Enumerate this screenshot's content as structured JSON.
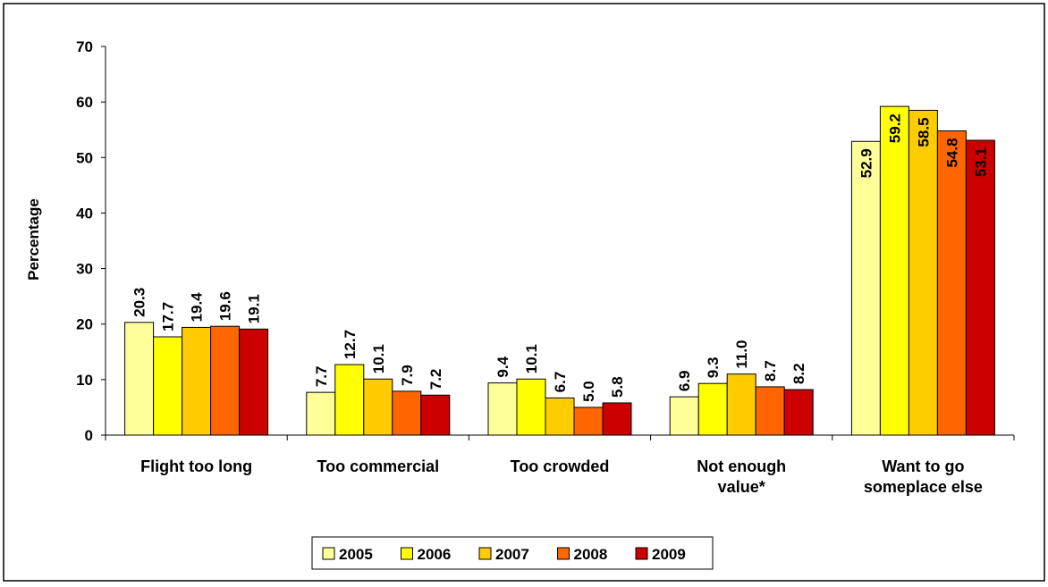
{
  "chart_data": {
    "type": "bar",
    "title": "",
    "xlabel": "",
    "ylabel": "Percentage",
    "ylim": [
      0,
      70
    ],
    "yticks": [
      0,
      10,
      20,
      30,
      40,
      50,
      60,
      70
    ],
    "grid": false,
    "legend_position": "bottom",
    "categories": [
      [
        "Flight too long"
      ],
      [
        "Too commercial"
      ],
      [
        "Too crowded"
      ],
      [
        "Not enough",
        "value*"
      ],
      [
        "Want to go",
        "someplace else"
      ]
    ],
    "series": [
      {
        "name": "2005",
        "color": "#FFFF99",
        "values": [
          20.3,
          7.7,
          9.4,
          6.9,
          52.9
        ],
        "labels": [
          "20.3",
          "7.7",
          "9.4",
          "6.9",
          "52.9"
        ]
      },
      {
        "name": "2006",
        "color": "#FFFF00",
        "values": [
          17.7,
          12.7,
          10.1,
          9.3,
          59.2
        ],
        "labels": [
          "17.7",
          "12.7",
          "10.1",
          "9.3",
          "59.2"
        ]
      },
      {
        "name": "2007",
        "color": "#FFCC00",
        "values": [
          19.4,
          10.1,
          6.7,
          11.0,
          58.5
        ],
        "labels": [
          "19.4",
          "10.1",
          "6.7",
          "11.0",
          "58.5"
        ]
      },
      {
        "name": "2008",
        "color": "#FF6600",
        "values": [
          19.6,
          7.9,
          5.0,
          8.7,
          54.8
        ],
        "labels": [
          "19.6",
          "7.9",
          "5.0",
          "8.7",
          "54.8"
        ]
      },
      {
        "name": "2009",
        "color": "#CC0000",
        "values": [
          19.1,
          7.2,
          5.8,
          8.2,
          53.1
        ],
        "labels": [
          "19.1",
          "7.2",
          "5.8",
          "8.2",
          "53.1"
        ]
      }
    ]
  }
}
